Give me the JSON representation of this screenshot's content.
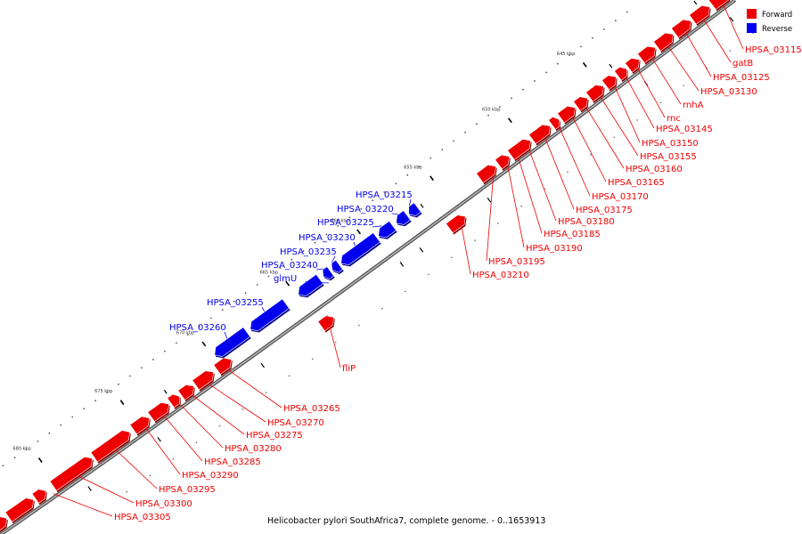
{
  "caption": "Helicobacter pylori SouthAfrica7, complete genome. - 0..1653913",
  "legend": [
    {
      "label": "Forward",
      "color": "#ee0000"
    },
    {
      "label": "Reverse",
      "color": "#0000ee"
    }
  ],
  "colors": {
    "forward": "#ee0000",
    "reverse": "#0000ee",
    "backbone": "#777777"
  },
  "ticks": [
    "645 kbp",
    "650 kbp",
    "655 kbp",
    "660 kbp",
    "665 kbp",
    "670 kbp",
    "675 kbp",
    "680 kbp"
  ],
  "forward_genes": [
    "HPSA_03115",
    "gatB",
    "HPSA_03125",
    "HPSA_03130",
    "rnhA",
    "rnc",
    "HPSA_03145",
    "HPSA_03150",
    "HPSA_03155",
    "HPSA_03160",
    "HPSA_03165",
    "HPSA_03170",
    "HPSA_03175",
    "HPSA_03180",
    "HPSA_03185",
    "HPSA_03190",
    "HPSA_03195",
    "HPSA_03210",
    "fliP",
    "HPSA_03265",
    "HPSA_03270",
    "HPSA_03275",
    "HPSA_03280",
    "HPSA_03285",
    "HPSA_03290",
    "HPSA_03295",
    "HPSA_03300",
    "HPSA_03305"
  ],
  "reverse_genes": [
    "HPSA_03215",
    "HPSA_03220",
    "HPSA_03225",
    "HPSA_03230",
    "HPSA_03235",
    "HPSA_03240",
    "glmU",
    "HPSA_03255",
    "HPSA_03260"
  ]
}
